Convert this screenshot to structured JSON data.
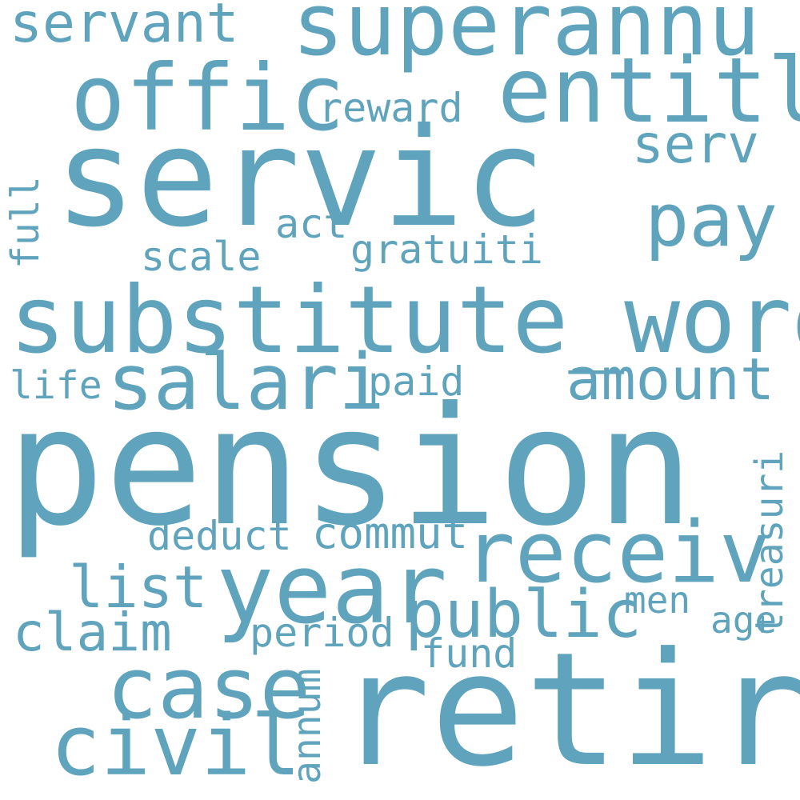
{
  "style": {
    "text_color": "#5fa4bc",
    "background": "#ffffff"
  },
  "words": [
    {
      "id": "pension",
      "text": "pension",
      "orientation": "horizontal"
    },
    {
      "id": "servic",
      "text": "servic",
      "orientation": "horizontal"
    },
    {
      "id": "retir",
      "text": "retir",
      "orientation": "horizontal"
    },
    {
      "id": "substitute-word",
      "text": "substitute_word",
      "orientation": "horizontal"
    },
    {
      "id": "superannu",
      "text": "superannu",
      "orientation": "horizontal"
    },
    {
      "id": "offic",
      "text": "offic",
      "orientation": "horizontal"
    },
    {
      "id": "entitl",
      "text": "entitl",
      "orientation": "horizontal"
    },
    {
      "id": "year",
      "text": "year",
      "orientation": "horizontal"
    },
    {
      "id": "receiv",
      "text": "receiv",
      "orientation": "horizontal"
    },
    {
      "id": "case",
      "text": "case",
      "orientation": "horizontal"
    },
    {
      "id": "civil",
      "text": "civil",
      "orientation": "horizontal"
    },
    {
      "id": "pay",
      "text": "pay",
      "orientation": "horizontal"
    },
    {
      "id": "salari",
      "text": "salari",
      "orientation": "horizontal"
    },
    {
      "id": "public",
      "text": "public",
      "orientation": "horizontal"
    },
    {
      "id": "amount",
      "text": "amount",
      "orientation": "horizontal"
    },
    {
      "id": "servant",
      "text": "servant",
      "orientation": "horizontal"
    },
    {
      "id": "serv",
      "text": "serv",
      "orientation": "horizontal"
    },
    {
      "id": "claim",
      "text": "claim",
      "orientation": "horizontal"
    },
    {
      "id": "list",
      "text": "list",
      "orientation": "horizontal"
    },
    {
      "id": "reward",
      "text": "reward",
      "orientation": "horizontal"
    },
    {
      "id": "act",
      "text": "act",
      "orientation": "horizontal"
    },
    {
      "id": "scale",
      "text": "scale",
      "orientation": "horizontal"
    },
    {
      "id": "gratuiti",
      "text": "gratuiti",
      "orientation": "horizontal"
    },
    {
      "id": "deduct",
      "text": "deduct",
      "orientation": "horizontal"
    },
    {
      "id": "commut",
      "text": "commut",
      "orientation": "horizontal"
    },
    {
      "id": "period",
      "text": "period",
      "orientation": "horizontal"
    },
    {
      "id": "fund",
      "text": "fund",
      "orientation": "horizontal"
    },
    {
      "id": "men",
      "text": "men",
      "orientation": "horizontal"
    },
    {
      "id": "age",
      "text": "age",
      "orientation": "horizontal"
    },
    {
      "id": "paid",
      "text": "paid",
      "orientation": "horizontal"
    },
    {
      "id": "life",
      "text": "life",
      "orientation": "horizontal"
    },
    {
      "id": "full",
      "text": "full",
      "orientation": "vertical"
    },
    {
      "id": "treasuri",
      "text": "treasuri",
      "orientation": "vertical"
    },
    {
      "id": "annum",
      "text": "annum",
      "orientation": "vertical"
    }
  ]
}
